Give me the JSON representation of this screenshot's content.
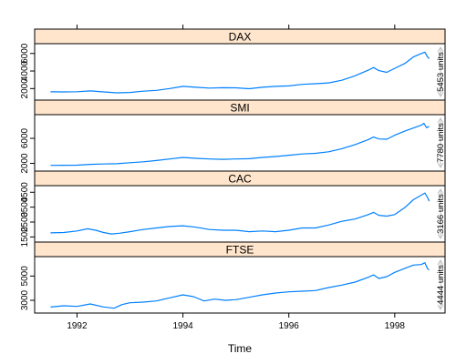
{
  "chart_data": {
    "type": "line",
    "title": "",
    "xlabel": "Time",
    "ylabel": "",
    "xlim": [
      1991.2,
      1998.95
    ],
    "x_ticks": [
      "1992",
      "1994",
      "1996",
      "1998"
    ],
    "x_tick_values": [
      1992,
      1994,
      1996,
      1998
    ],
    "line_color": "#0080ff",
    "strip_color": "#ffe5cc",
    "range_indicator_color": "#bfbfbf",
    "panels": [
      {
        "name": "DAX",
        "ylim": [
          1100,
          6700
        ],
        "y_ticks": [
          "2000",
          "4000",
          "6000"
        ],
        "y_tick_values": [
          2000,
          4000,
          6000
        ],
        "range_label": "5453 units",
        "series": [
          [
            1991.5,
            1628
          ],
          [
            1991.75,
            1620
          ],
          [
            1992.0,
            1640
          ],
          [
            1992.25,
            1730
          ],
          [
            1992.5,
            1620
          ],
          [
            1992.75,
            1520
          ],
          [
            1993.0,
            1560
          ],
          [
            1993.25,
            1700
          ],
          [
            1993.5,
            1800
          ],
          [
            1993.75,
            2000
          ],
          [
            1994.0,
            2250
          ],
          [
            1994.25,
            2150
          ],
          [
            1994.5,
            2050
          ],
          [
            1994.75,
            2100
          ],
          [
            1995.0,
            2080
          ],
          [
            1995.25,
            1980
          ],
          [
            1995.5,
            2150
          ],
          [
            1995.75,
            2250
          ],
          [
            1996.0,
            2300
          ],
          [
            1996.25,
            2480
          ],
          [
            1996.5,
            2550
          ],
          [
            1996.75,
            2650
          ],
          [
            1997.0,
            2950
          ],
          [
            1997.25,
            3450
          ],
          [
            1997.5,
            4100
          ],
          [
            1997.6,
            4400
          ],
          [
            1997.7,
            4050
          ],
          [
            1997.85,
            3850
          ],
          [
            1998.0,
            4300
          ],
          [
            1998.2,
            4900
          ],
          [
            1998.35,
            5600
          ],
          [
            1998.5,
            6000
          ],
          [
            1998.57,
            6150
          ],
          [
            1998.62,
            5600
          ],
          [
            1998.65,
            5400
          ]
        ]
      },
      {
        "name": "SMI",
        "ylim": [
          1350,
          9200
        ],
        "y_ticks": [
          "2000",
          "6000"
        ],
        "y_tick_values": [
          2000,
          6000
        ],
        "range_label": "7780 units",
        "series": [
          [
            1991.5,
            1678
          ],
          [
            1991.75,
            1700
          ],
          [
            1992.0,
            1720
          ],
          [
            1992.25,
            1850
          ],
          [
            1992.5,
            1900
          ],
          [
            1992.75,
            1950
          ],
          [
            1993.0,
            2100
          ],
          [
            1993.25,
            2250
          ],
          [
            1993.5,
            2450
          ],
          [
            1993.75,
            2700
          ],
          [
            1994.0,
            2950
          ],
          [
            1994.25,
            2800
          ],
          [
            1994.5,
            2700
          ],
          [
            1994.75,
            2650
          ],
          [
            1995.0,
            2700
          ],
          [
            1995.25,
            2750
          ],
          [
            1995.5,
            2950
          ],
          [
            1995.75,
            3100
          ],
          [
            1996.0,
            3300
          ],
          [
            1996.25,
            3500
          ],
          [
            1996.5,
            3600
          ],
          [
            1996.75,
            3850
          ],
          [
            1997.0,
            4350
          ],
          [
            1997.25,
            5000
          ],
          [
            1997.5,
            5800
          ],
          [
            1997.6,
            6200
          ],
          [
            1997.7,
            5900
          ],
          [
            1997.85,
            5850
          ],
          [
            1998.0,
            6500
          ],
          [
            1998.2,
            7200
          ],
          [
            1998.35,
            7650
          ],
          [
            1998.5,
            8100
          ],
          [
            1998.55,
            8400
          ],
          [
            1998.6,
            7700
          ],
          [
            1998.65,
            7900
          ]
        ]
      },
      {
        "name": "CAC",
        "ylim": [
          1400,
          4700
        ],
        "y_ticks": [
          "1500",
          "2500",
          "3500",
          "4500"
        ],
        "y_tick_values": [
          1500,
          2500,
          3500,
          4500
        ],
        "range_label": "3166 units",
        "series": [
          [
            1991.5,
            1773
          ],
          [
            1991.75,
            1800
          ],
          [
            1992.0,
            1900
          ],
          [
            1992.2,
            2050
          ],
          [
            1992.35,
            1950
          ],
          [
            1992.5,
            1800
          ],
          [
            1992.65,
            1700
          ],
          [
            1992.8,
            1750
          ],
          [
            1993.0,
            1850
          ],
          [
            1993.25,
            2000
          ],
          [
            1993.5,
            2100
          ],
          [
            1993.75,
            2200
          ],
          [
            1994.0,
            2250
          ],
          [
            1994.25,
            2150
          ],
          [
            1994.5,
            2000
          ],
          [
            1994.75,
            1950
          ],
          [
            1995.0,
            1950
          ],
          [
            1995.25,
            1850
          ],
          [
            1995.5,
            1900
          ],
          [
            1995.75,
            1850
          ],
          [
            1996.0,
            1950
          ],
          [
            1996.25,
            2100
          ],
          [
            1996.5,
            2100
          ],
          [
            1996.75,
            2300
          ],
          [
            1997.0,
            2550
          ],
          [
            1997.25,
            2700
          ],
          [
            1997.5,
            3000
          ],
          [
            1997.6,
            3150
          ],
          [
            1997.7,
            2950
          ],
          [
            1997.85,
            2900
          ],
          [
            1998.0,
            3000
          ],
          [
            1998.2,
            3500
          ],
          [
            1998.35,
            4000
          ],
          [
            1998.5,
            4300
          ],
          [
            1998.57,
            4450
          ],
          [
            1998.62,
            4150
          ],
          [
            1998.65,
            3900
          ]
        ]
      },
      {
        "name": "FTSE",
        "ylim": [
          2250,
          6300
        ],
        "y_ticks": [
          "3000",
          "5000"
        ],
        "y_tick_values": [
          3000,
          5000
        ],
        "range_label": "4444 units",
        "series": [
          [
            1991.5,
            2443
          ],
          [
            1991.75,
            2550
          ],
          [
            1992.0,
            2500
          ],
          [
            1992.25,
            2700
          ],
          [
            1992.5,
            2450
          ],
          [
            1992.7,
            2350
          ],
          [
            1992.85,
            2650
          ],
          [
            1993.0,
            2800
          ],
          [
            1993.25,
            2850
          ],
          [
            1993.5,
            2950
          ],
          [
            1993.75,
            3200
          ],
          [
            1994.0,
            3450
          ],
          [
            1994.2,
            3300
          ],
          [
            1994.4,
            2950
          ],
          [
            1994.6,
            3100
          ],
          [
            1994.8,
            3000
          ],
          [
            1995.0,
            3050
          ],
          [
            1995.25,
            3250
          ],
          [
            1995.5,
            3450
          ],
          [
            1995.75,
            3600
          ],
          [
            1996.0,
            3700
          ],
          [
            1996.25,
            3750
          ],
          [
            1996.5,
            3800
          ],
          [
            1996.75,
            4050
          ],
          [
            1997.0,
            4250
          ],
          [
            1997.25,
            4500
          ],
          [
            1997.5,
            4900
          ],
          [
            1997.6,
            5100
          ],
          [
            1997.7,
            4800
          ],
          [
            1997.85,
            4950
          ],
          [
            1998.0,
            5300
          ],
          [
            1998.2,
            5650
          ],
          [
            1998.35,
            5900
          ],
          [
            1998.5,
            5950
          ],
          [
            1998.57,
            6100
          ],
          [
            1998.62,
            5600
          ],
          [
            1998.65,
            5500
          ]
        ]
      }
    ]
  }
}
